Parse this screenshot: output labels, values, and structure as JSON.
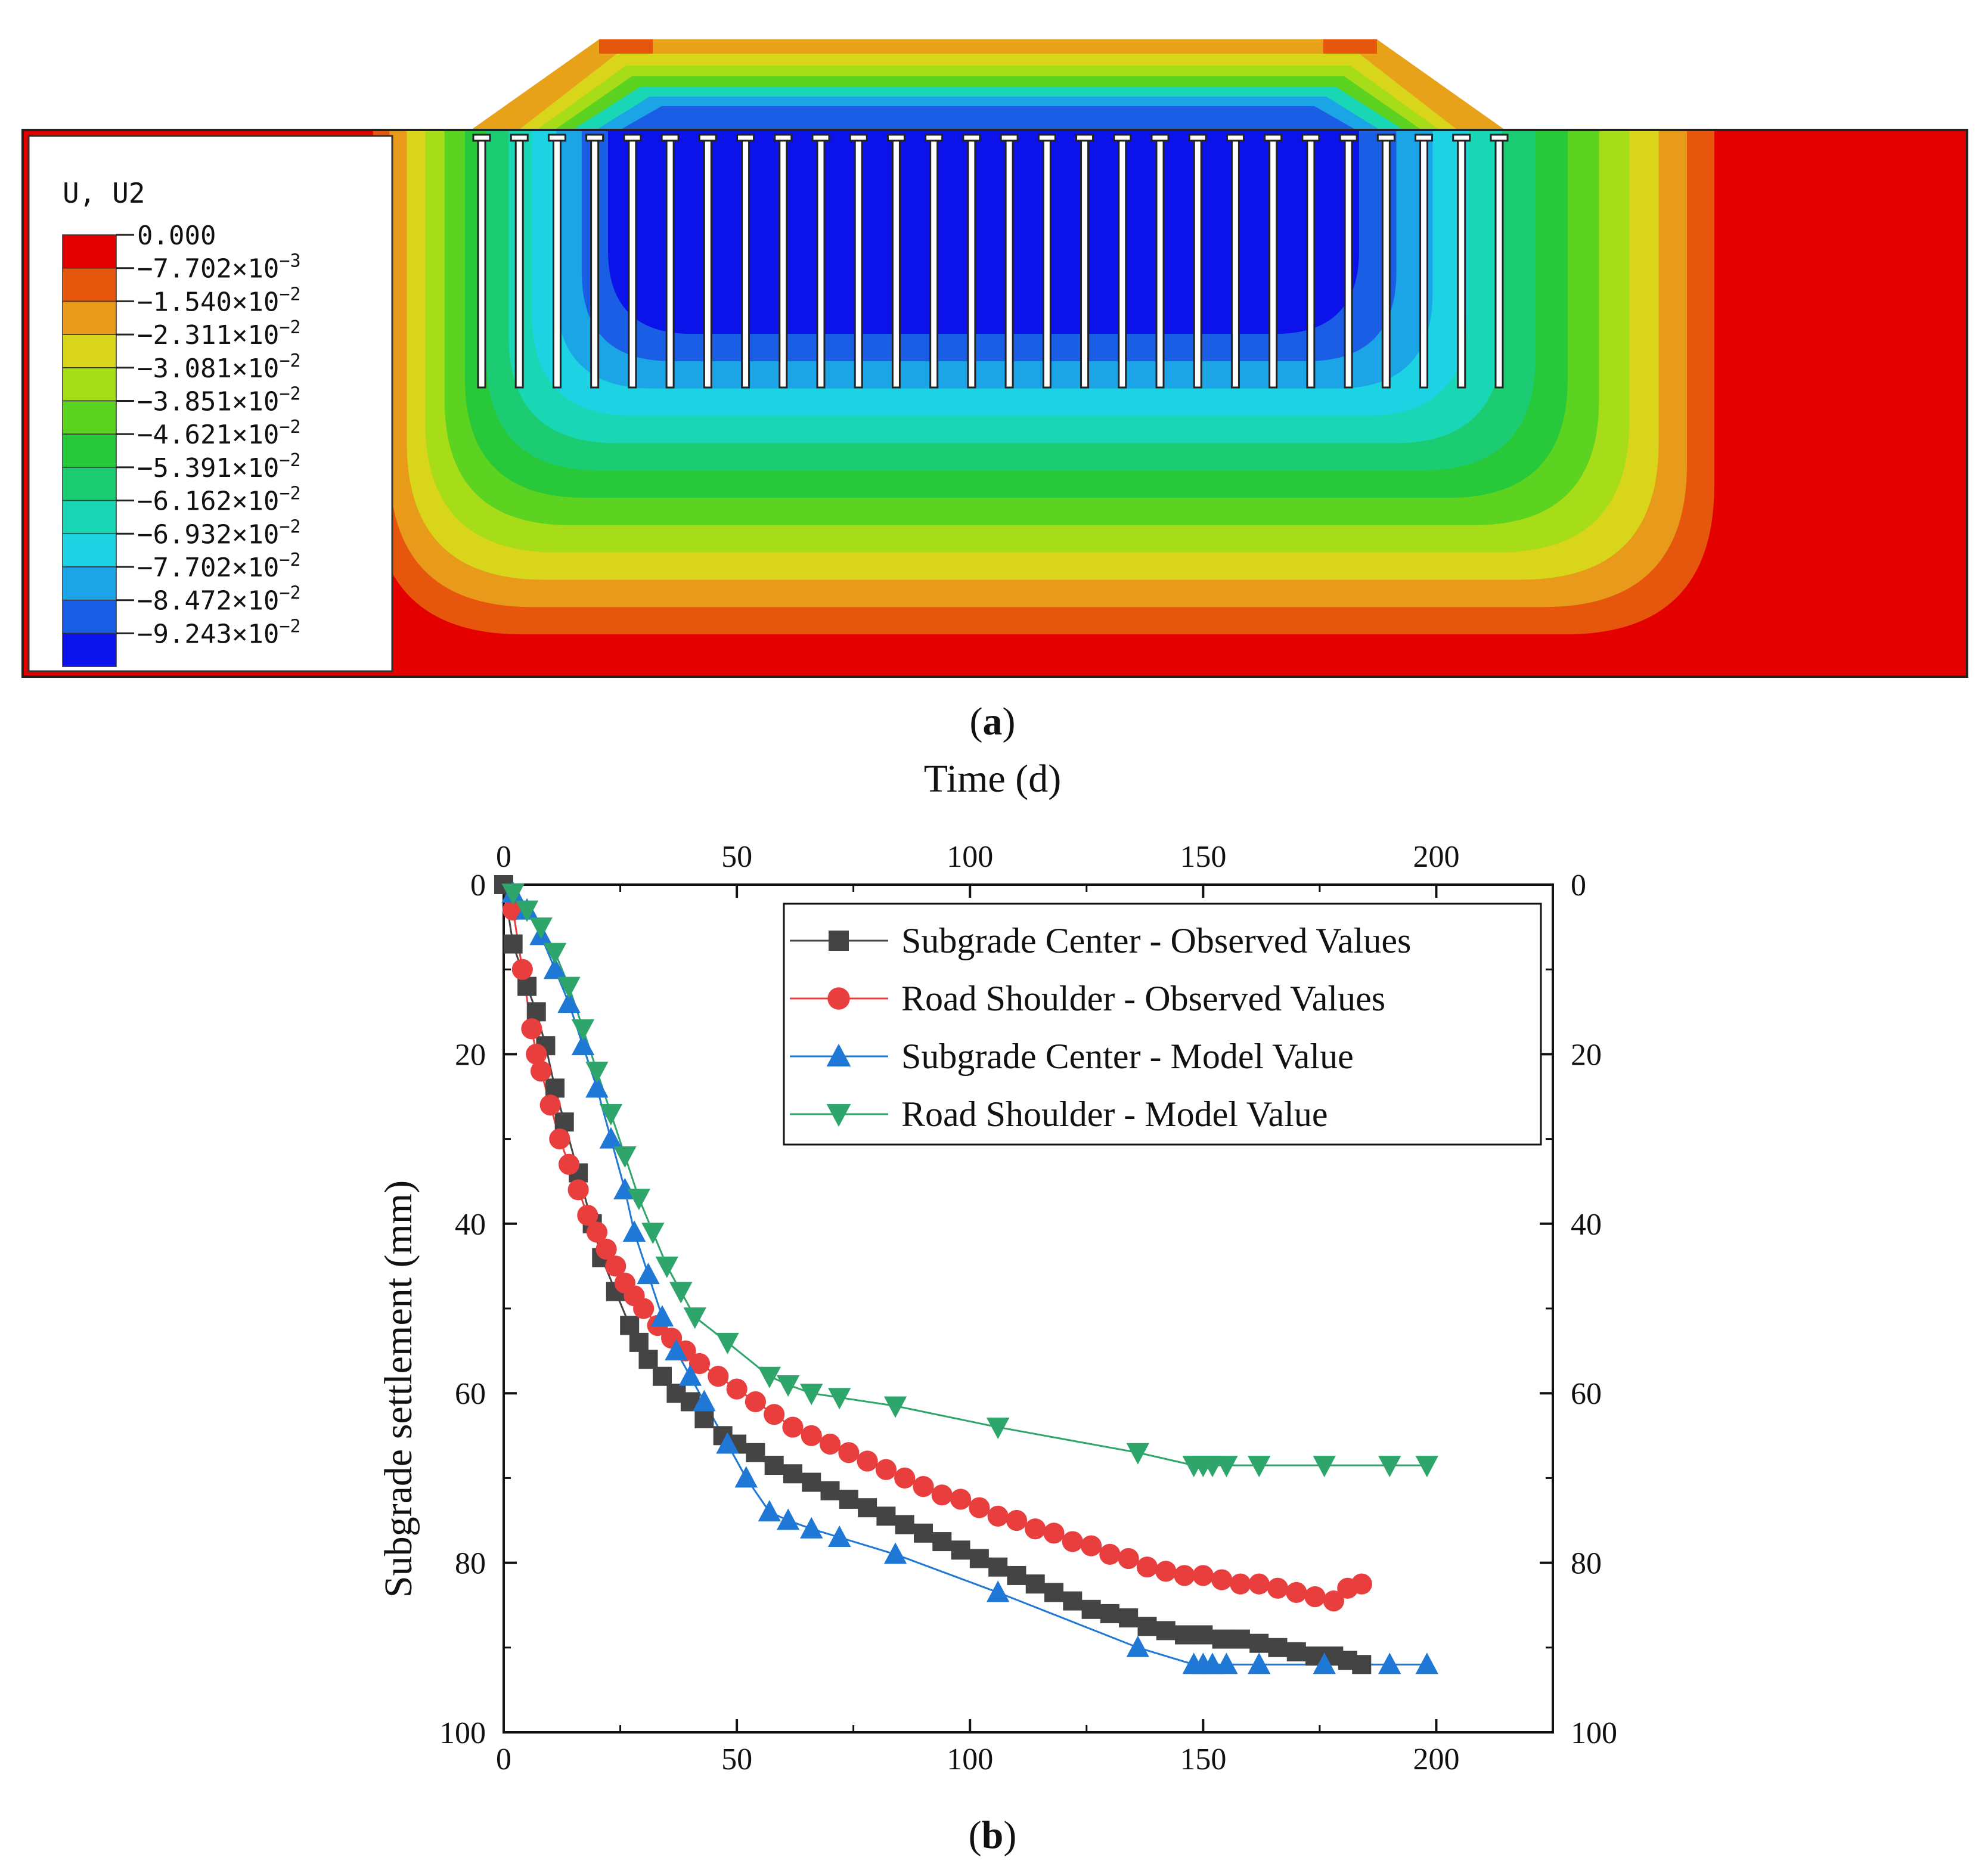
{
  "panel_a": {
    "caption": "(a)",
    "caption_letter": "a",
    "legend": {
      "title": "U, U2",
      "entries": [
        {
          "mant": "0.000",
          "exp": "",
          "color": "#e50000"
        },
        {
          "mant": "−7.702×10",
          "exp": "−3",
          "color": "#e6560d"
        },
        {
          "mant": "−1.540×10",
          "exp": "−2",
          "color": "#e89a1a"
        },
        {
          "mant": "−2.311×10",
          "exp": "−2",
          "color": "#d8d51b"
        },
        {
          "mant": "−3.081×10",
          "exp": "−2",
          "color": "#a6dc18"
        },
        {
          "mant": "−3.851×10",
          "exp": "−2",
          "color": "#5cd221"
        },
        {
          "mant": "−4.621×10",
          "exp": "−2",
          "color": "#27c83a"
        },
        {
          "mant": "−5.391×10",
          "exp": "−2",
          "color": "#1ccc72"
        },
        {
          "mant": "−6.162×10",
          "exp": "−2",
          "color": "#19d6b4"
        },
        {
          "mant": "−6.932×10",
          "exp": "−2",
          "color": "#1dd2e2"
        },
        {
          "mant": "−7.702×10",
          "exp": "−2",
          "color": "#1ba4e6"
        },
        {
          "mant": "−8.472×10",
          "exp": "−2",
          "color": "#1a5ee6"
        },
        {
          "mant": "−9.243×10",
          "exp": "−2",
          "color": "#0b12ea"
        }
      ]
    },
    "pile_count": 28
  },
  "chart_data": {
    "type": "scatter",
    "caption": "(b)",
    "caption_letter": "b",
    "xlabel": "Time (d)",
    "ylabel": "Subgrade settlement (mm)",
    "xlim": [
      0,
      225
    ],
    "ylim": [
      0,
      100
    ],
    "y_inverted": true,
    "x_ticks": [
      "0",
      "50",
      "100",
      "150",
      "200"
    ],
    "y_ticks": [
      "0",
      "20",
      "40",
      "60",
      "80",
      "100"
    ],
    "legend_position": "top-right",
    "series": [
      {
        "name": "Subgrade Center - Observed Values",
        "color": "#444444",
        "marker": "square",
        "points": [
          [
            0,
            0
          ],
          [
            2,
            7
          ],
          [
            5,
            12
          ],
          [
            7,
            15
          ],
          [
            9,
            19
          ],
          [
            11,
            24
          ],
          [
            13,
            28
          ],
          [
            16,
            34
          ],
          [
            19,
            40
          ],
          [
            21,
            44
          ],
          [
            24,
            48
          ],
          [
            27,
            52
          ],
          [
            29,
            54
          ],
          [
            31,
            56
          ],
          [
            34,
            58
          ],
          [
            37,
            60
          ],
          [
            40,
            61
          ],
          [
            43,
            63
          ],
          [
            47,
            65
          ],
          [
            50,
            66
          ],
          [
            54,
            67
          ],
          [
            58,
            68.5
          ],
          [
            62,
            69.5
          ],
          [
            66,
            70.5
          ],
          [
            70,
            71.5
          ],
          [
            74,
            72.5
          ],
          [
            78,
            73.5
          ],
          [
            82,
            74.5
          ],
          [
            86,
            75.5
          ],
          [
            90,
            76.5
          ],
          [
            94,
            77.5
          ],
          [
            98,
            78.5
          ],
          [
            102,
            79.5
          ],
          [
            106,
            80.5
          ],
          [
            110,
            81.5
          ],
          [
            114,
            82.5
          ],
          [
            118,
            83.5
          ],
          [
            122,
            84.5
          ],
          [
            126,
            85.5
          ],
          [
            130,
            86
          ],
          [
            134,
            86.5
          ],
          [
            138,
            87.5
          ],
          [
            142,
            88
          ],
          [
            146,
            88.5
          ],
          [
            150,
            88.5
          ],
          [
            154,
            89
          ],
          [
            158,
            89
          ],
          [
            162,
            89.5
          ],
          [
            166,
            90
          ],
          [
            170,
            90.5
          ],
          [
            174,
            91
          ],
          [
            178,
            91
          ],
          [
            181,
            91.5
          ],
          [
            184,
            92
          ]
        ]
      },
      {
        "name": "Road Shoulder - Observed Values",
        "color": "#e83e3e",
        "marker": "circle",
        "points": [
          [
            2,
            3
          ],
          [
            4,
            10
          ],
          [
            6,
            17
          ],
          [
            7,
            20
          ],
          [
            8,
            22
          ],
          [
            10,
            26
          ],
          [
            12,
            30
          ],
          [
            14,
            33
          ],
          [
            16,
            36
          ],
          [
            18,
            39
          ],
          [
            20,
            41
          ],
          [
            22,
            43
          ],
          [
            24,
            45
          ],
          [
            26,
            47
          ],
          [
            28,
            48.5
          ],
          [
            30,
            50
          ],
          [
            33,
            52
          ],
          [
            36,
            53.5
          ],
          [
            39,
            55
          ],
          [
            42,
            56.5
          ],
          [
            46,
            58
          ],
          [
            50,
            59.5
          ],
          [
            54,
            61
          ],
          [
            58,
            62.5
          ],
          [
            62,
            64
          ],
          [
            66,
            65
          ],
          [
            70,
            66
          ],
          [
            74,
            67
          ],
          [
            78,
            68
          ],
          [
            82,
            69
          ],
          [
            86,
            70
          ],
          [
            90,
            71
          ],
          [
            94,
            72
          ],
          [
            98,
            72.5
          ],
          [
            102,
            73.5
          ],
          [
            106,
            74.5
          ],
          [
            110,
            75
          ],
          [
            114,
            76
          ],
          [
            118,
            76.5
          ],
          [
            122,
            77.5
          ],
          [
            126,
            78
          ],
          [
            130,
            79
          ],
          [
            134,
            79.5
          ],
          [
            138,
            80.5
          ],
          [
            142,
            81
          ],
          [
            146,
            81.5
          ],
          [
            150,
            81.5
          ],
          [
            154,
            82
          ],
          [
            158,
            82.5
          ],
          [
            162,
            82.5
          ],
          [
            166,
            83
          ],
          [
            170,
            83.5
          ],
          [
            174,
            84
          ],
          [
            178,
            84.5
          ],
          [
            181,
            83
          ],
          [
            184,
            82.5
          ]
        ]
      },
      {
        "name": "Subgrade Center - Model Value",
        "color": "#1f78d6",
        "marker": "triangle-up",
        "points": [
          [
            2,
            1
          ],
          [
            5,
            3
          ],
          [
            8,
            6
          ],
          [
            11,
            10
          ],
          [
            14,
            14
          ],
          [
            17,
            19
          ],
          [
            20,
            24
          ],
          [
            23,
            30
          ],
          [
            26,
            36
          ],
          [
            28,
            41
          ],
          [
            31,
            46
          ],
          [
            34,
            51
          ],
          [
            37,
            55
          ],
          [
            40,
            58
          ],
          [
            43,
            61
          ],
          [
            48,
            66
          ],
          [
            52,
            70
          ],
          [
            57,
            74
          ],
          [
            61,
            75
          ],
          [
            66,
            76
          ],
          [
            72,
            77
          ],
          [
            84,
            79
          ],
          [
            106,
            83.5
          ],
          [
            136,
            90
          ],
          [
            148,
            92
          ],
          [
            150,
            92
          ],
          [
            152,
            92
          ],
          [
            155,
            92
          ],
          [
            162,
            92
          ],
          [
            176,
            92
          ],
          [
            190,
            92
          ],
          [
            198,
            92
          ]
        ]
      },
      {
        "name": "Road Shoulder - Model Value",
        "color": "#2ea56a",
        "marker": "triangle-down",
        "points": [
          [
            2,
            1
          ],
          [
            5,
            3
          ],
          [
            8,
            5
          ],
          [
            11,
            8
          ],
          [
            14,
            12
          ],
          [
            17,
            17
          ],
          [
            20,
            22
          ],
          [
            23,
            27
          ],
          [
            26,
            32
          ],
          [
            29,
            37
          ],
          [
            32,
            41
          ],
          [
            35,
            45
          ],
          [
            38,
            48
          ],
          [
            41,
            51
          ],
          [
            48,
            54
          ],
          [
            57,
            58
          ],
          [
            61,
            59
          ],
          [
            66,
            60
          ],
          [
            72,
            60.5
          ],
          [
            84,
            61.5
          ],
          [
            106,
            64
          ],
          [
            136,
            67
          ],
          [
            148,
            68.5
          ],
          [
            150,
            68.5
          ],
          [
            152,
            68.5
          ],
          [
            155,
            68.5
          ],
          [
            162,
            68.5
          ],
          [
            176,
            68.5
          ],
          [
            190,
            68.5
          ],
          [
            198,
            68.5
          ]
        ]
      }
    ]
  }
}
